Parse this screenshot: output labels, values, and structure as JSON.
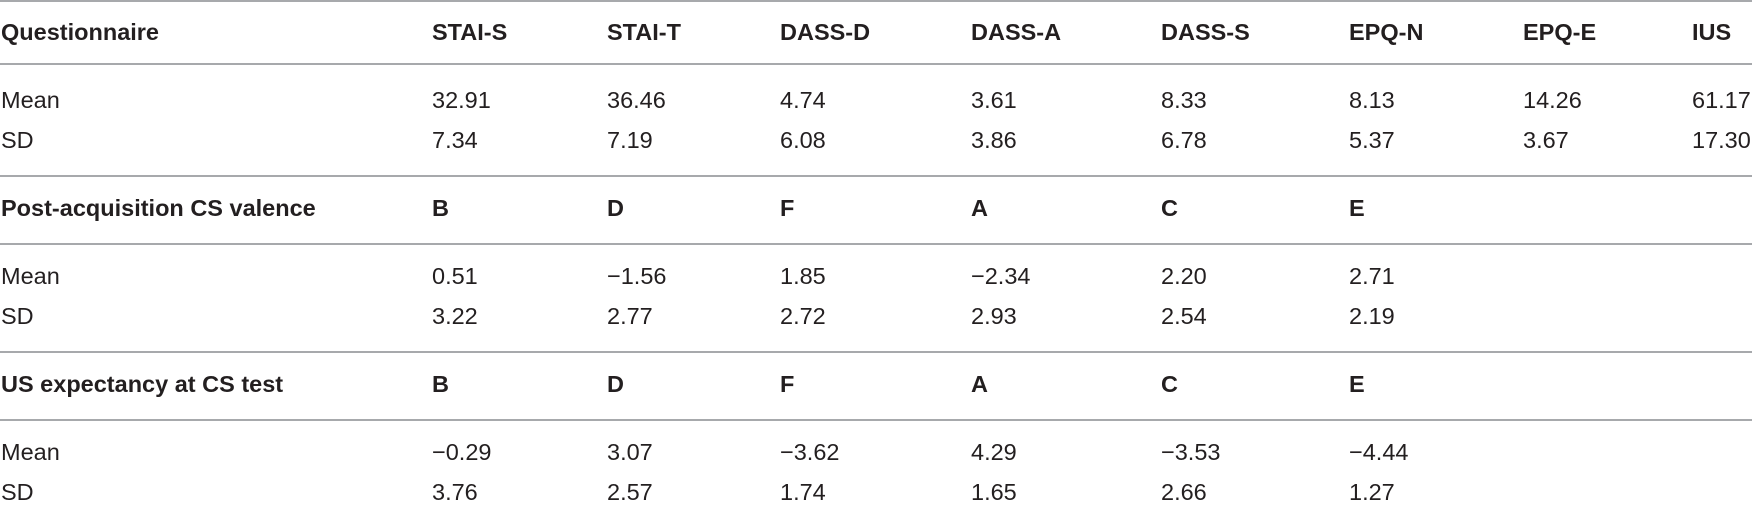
{
  "sections": [
    {
      "header": [
        "Questionnaire",
        "STAI-S",
        "STAI-T",
        "DASS-D",
        "DASS-A",
        "DASS-S",
        "EPQ-N",
        "EPQ-E",
        "IUS"
      ],
      "rows": [
        [
          "Mean",
          "32.91",
          "36.46",
          "4.74",
          "3.61",
          "8.33",
          "8.13",
          "14.26",
          "61.17"
        ],
        [
          "SD",
          "7.34",
          "7.19",
          "6.08",
          "3.86",
          "6.78",
          "5.37",
          "3.67",
          "17.30"
        ]
      ]
    },
    {
      "header": [
        "Post-acquisition CS valence",
        "B",
        "D",
        "F",
        "A",
        "C",
        "E",
        "",
        ""
      ],
      "rows": [
        [
          "Mean",
          "0.51",
          "−1.56",
          "1.85",
          "−2.34",
          "2.20",
          "2.71",
          "",
          ""
        ],
        [
          "SD",
          "3.22",
          "2.77",
          "2.72",
          "2.93",
          "2.54",
          "2.19",
          "",
          ""
        ]
      ]
    },
    {
      "header": [
        "US expectancy at CS test",
        "B",
        "D",
        "F",
        "A",
        "C",
        "E",
        "",
        ""
      ],
      "rows": [
        [
          "Mean",
          "−0.29",
          "3.07",
          "−3.62",
          "4.29",
          "−3.53",
          "−4.44",
          "",
          ""
        ],
        [
          "SD",
          "3.76",
          "2.57",
          "1.74",
          "1.65",
          "2.66",
          "1.27",
          "",
          ""
        ]
      ]
    }
  ]
}
